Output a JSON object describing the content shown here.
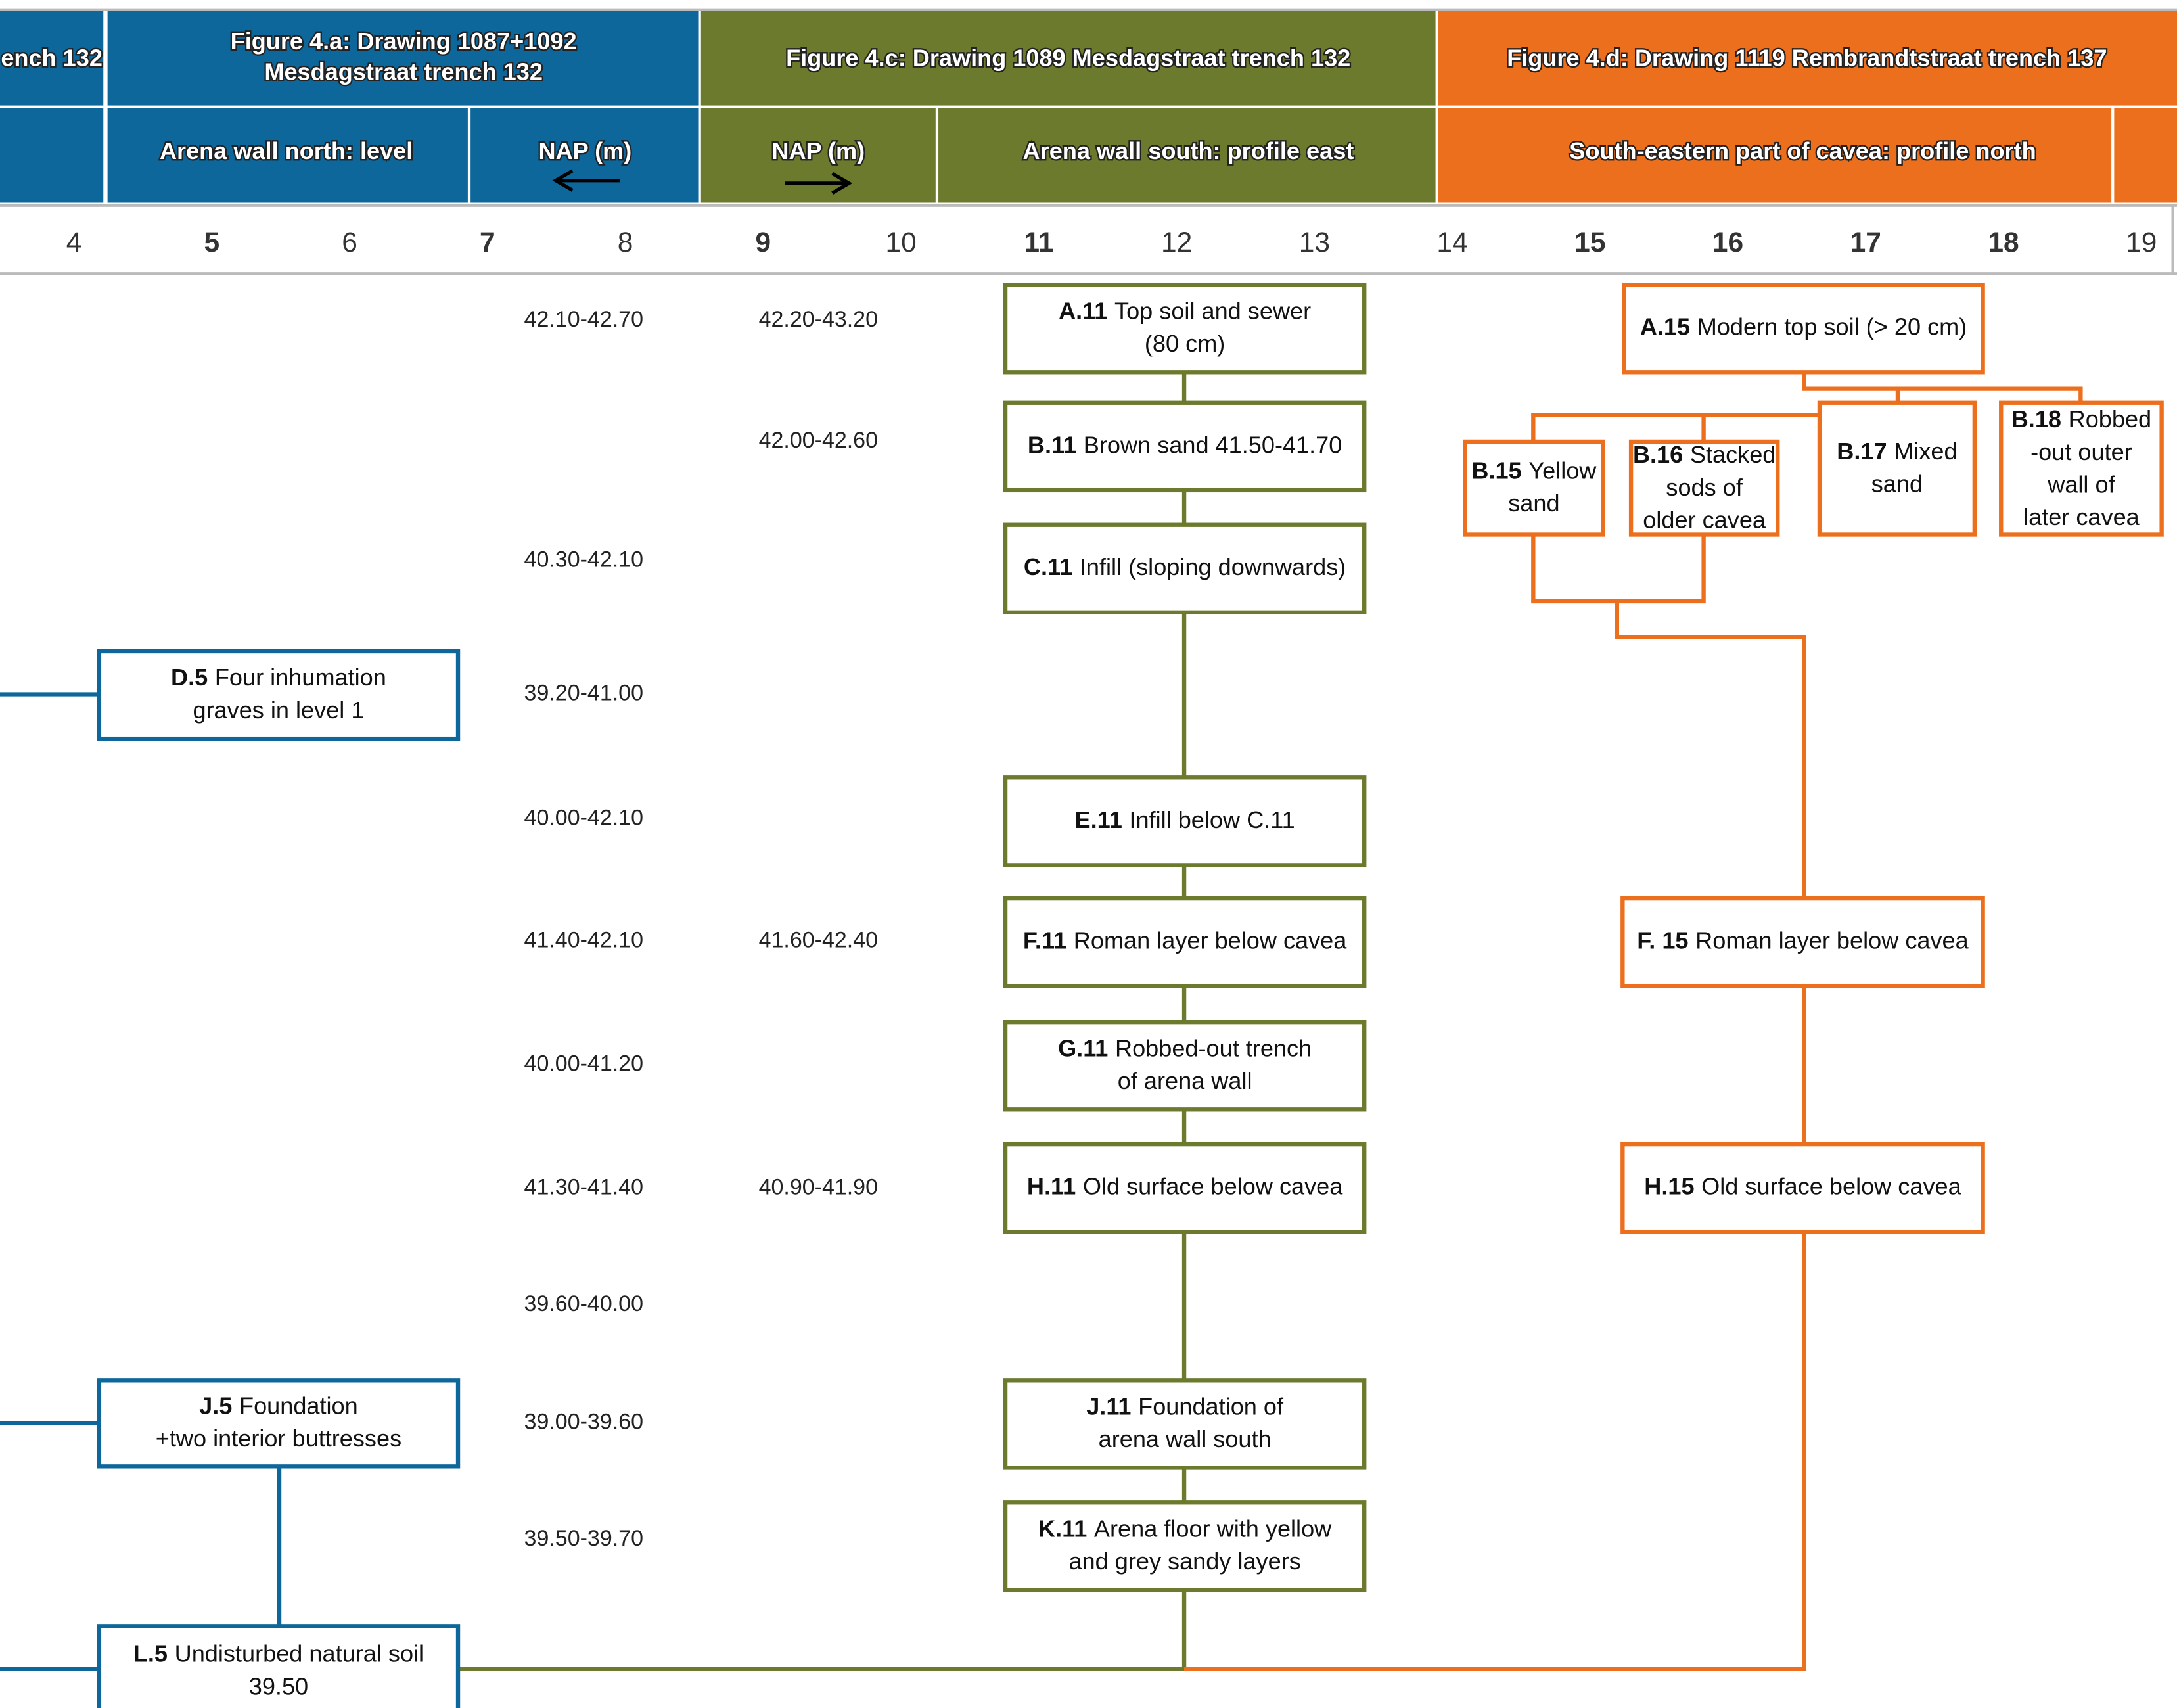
{
  "header": {
    "row1": [
      {
        "lines": [
          "ench 132"
        ]
      },
      {
        "lines": [
          "Figure 4.a: Drawing 1087+1092",
          "Mesdagstraat trench 132"
        ]
      },
      {
        "lines": [
          "Figure 4.c: Drawing 1089 Mesdagstraat trench 132"
        ]
      },
      {
        "lines": [
          "Figure 4.d: Drawing 1119 Rembrandtstraat trench 137"
        ]
      }
    ],
    "row2": [
      "Arena wall north: level",
      "NAP (m)",
      "NAP (m)",
      "Arena wall south: profile east",
      "South-eastern part of cavea: profile north"
    ]
  },
  "columns": [
    "4",
    "5",
    "6",
    "7",
    "8",
    "9",
    "10",
    "11",
    "12",
    "13",
    "14",
    "15",
    "16",
    "17",
    "18",
    "19"
  ],
  "nap_left": [
    "42.10-42.70",
    "40.30-42.10",
    "39.20-41.00",
    "40.00-42.10",
    "41.40-42.10",
    "40.00-41.20",
    "41.30-41.40",
    "39.60-40.00",
    "39.00-39.60",
    "39.50-39.70"
  ],
  "nap_right": [
    "42.20-43.20",
    "42.00-42.60",
    "41.60-42.40",
    "40.90-41.90"
  ],
  "nodes": [
    {
      "code": "D.5",
      "lines": [
        "Four inhumation",
        "graves in level 1"
      ]
    },
    {
      "code": "J.5",
      "lines": [
        "Foundation",
        "+two interior buttresses"
      ]
    },
    {
      "code": "L.5",
      "lines": [
        "Undisturbed natural soil",
        "39.50"
      ]
    },
    {
      "code": "A.11",
      "lines": [
        "Top soil and sewer",
        "(80 cm)"
      ]
    },
    {
      "code": "B.11",
      "lines": [
        "Brown sand 41.50-41.70"
      ]
    },
    {
      "code": "C.11",
      "lines": [
        "Infill (sloping downwards)"
      ]
    },
    {
      "code": "E.11",
      "lines": [
        "Infill below C.11"
      ]
    },
    {
      "code": "F.11",
      "lines": [
        "Roman layer below cavea"
      ]
    },
    {
      "code": "G.11",
      "lines": [
        "Robbed-out trench",
        "of arena wall"
      ]
    },
    {
      "code": "H.11",
      "lines": [
        "Old surface below cavea"
      ]
    },
    {
      "code": "J.11",
      "lines": [
        "Foundation of",
        "arena wall south"
      ]
    },
    {
      "code": "K.11",
      "lines": [
        "Arena floor with yellow",
        "and grey sandy layers"
      ]
    },
    {
      "code": "A.15",
      "lines": [
        "Modern top soil (> 20 cm)"
      ]
    },
    {
      "code": "B.15",
      "lines": [
        "Yellow",
        "sand"
      ]
    },
    {
      "code": "B.16",
      "lines": [
        "Stacked",
        "sods of",
        "older cavea"
      ]
    },
    {
      "code": "B.17",
      "lines": [
        "Mixed",
        "sand"
      ]
    },
    {
      "code": "B.18",
      "lines": [
        "Robbed",
        "-out outer",
        "wall of",
        "later cavea"
      ]
    },
    {
      "code": "F. 15",
      "lines": [
        "Roman layer below cavea"
      ]
    },
    {
      "code": "H.15",
      "lines": [
        "Old surface below cavea"
      ]
    }
  ]
}
